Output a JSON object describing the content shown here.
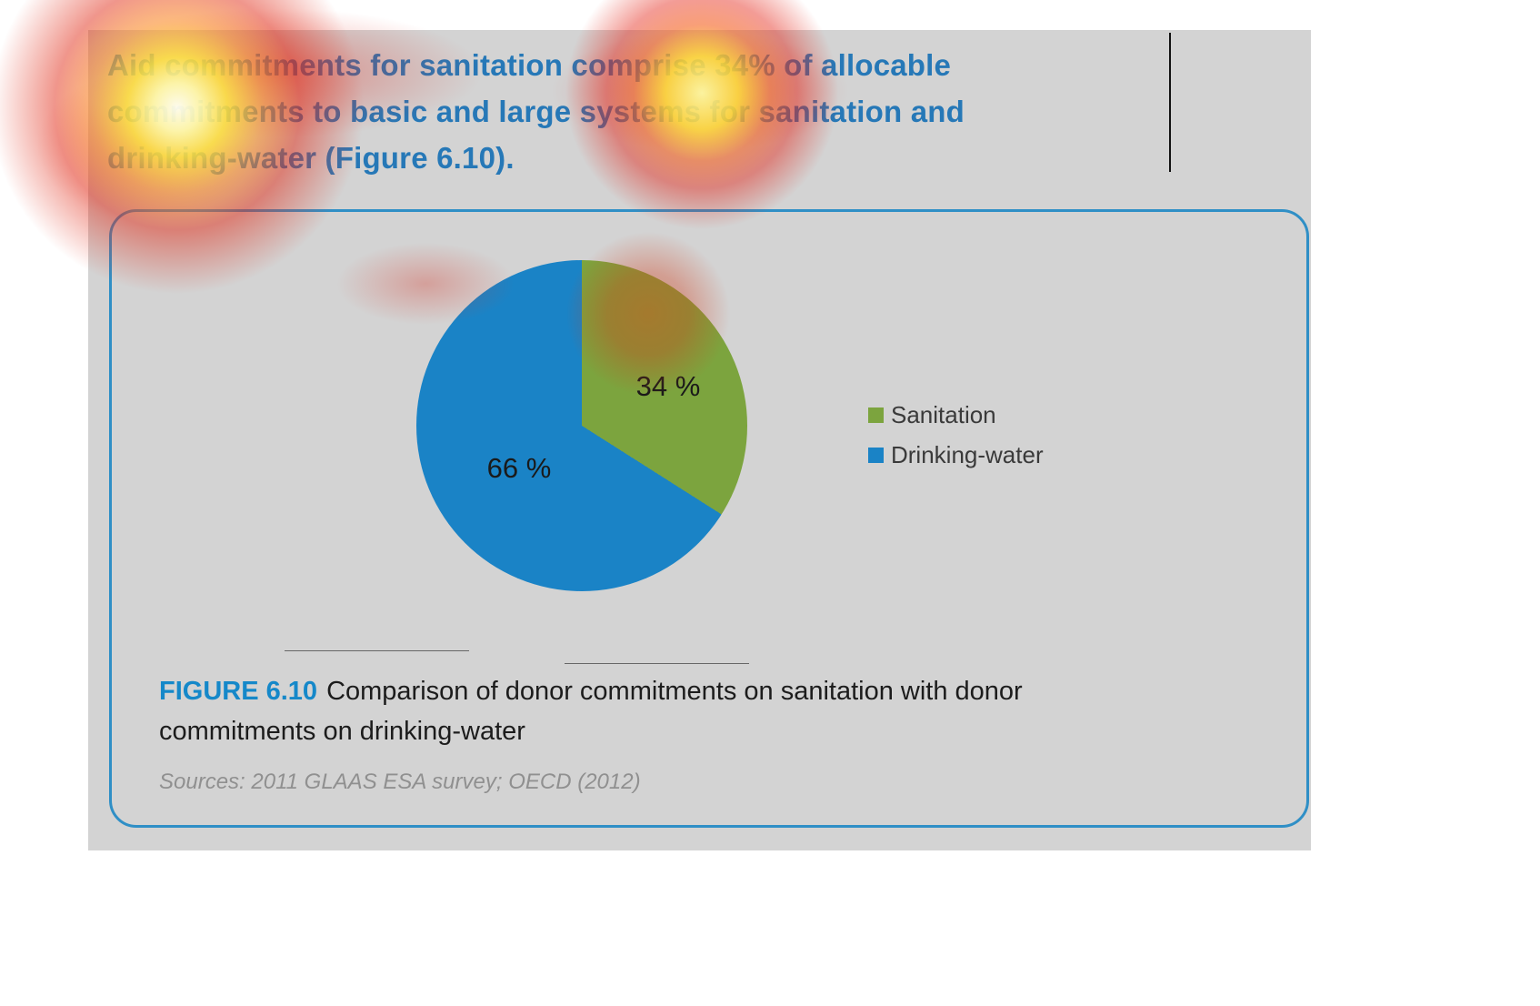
{
  "heading": {
    "lines": [
      "Aid commitments for sanitation comprise 34% of allocable",
      "commitments to basic and large systems for sanitation and",
      "drinking-water (Figure 6.10)."
    ],
    "full_text": "Aid commitments for sanitation comprise 34% of allocable commitments to basic and large systems for sanitation and drinking-water (Figure 6.10).",
    "color": "#2678b7"
  },
  "figure": {
    "label": "FIGURE 6.10",
    "caption_line1": "Comparison of donor commitments on sanitation with donor",
    "caption_line2": "commitments on drinking-water",
    "sources": "Sources: 2011 GLAAS ESA survey; OECD (2012)",
    "border_color": "#2f8fc6",
    "label_color": "#1588c9"
  },
  "chart_data": {
    "type": "pie",
    "title": "Comparison of donor commitments on sanitation with donor commitments on drinking-water",
    "slices": [
      {
        "label": "Sanitation",
        "value": 34,
        "display": "34 %",
        "color": "#7ca43e"
      },
      {
        "label": "Drinking-water",
        "value": 66,
        "display": "66 %",
        "color": "#1a83c6"
      }
    ],
    "start_angle_deg": 0,
    "direction": "clockwise",
    "legend_position": "right",
    "data_labels": [
      "34 %",
      "66 %"
    ]
  },
  "overlay": {
    "description": "attention-heatmap",
    "hotspots": [
      "heading start (Aid commitments)",
      "heading word comprise",
      "upper-left of figure box",
      "green pie slice"
    ]
  }
}
